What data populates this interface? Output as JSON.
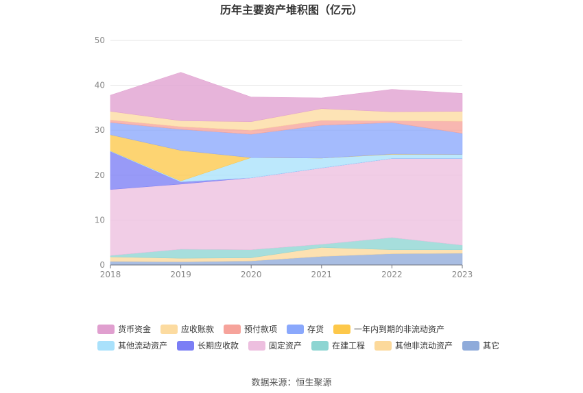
{
  "chart_data": {
    "type": "area",
    "stacked": true,
    "title": "历年主要资产堆积图（亿元）",
    "source": "数据来源：恒生聚源",
    "xlabel": "",
    "ylabel": "",
    "ylim": [
      0,
      50
    ],
    "yticks": [
      0,
      10,
      20,
      30,
      40,
      50
    ],
    "categories": [
      "2018",
      "2019",
      "2020",
      "2021",
      "2022",
      "2023"
    ],
    "grid": true,
    "legend_position": "bottom",
    "series": [
      {
        "name": "其它",
        "color": "#8fabda",
        "values": [
          0.8,
          0.7,
          0.9,
          1.9,
          2.5,
          2.6
        ]
      },
      {
        "name": "其他非流动资产",
        "color": "#fcd99b",
        "values": [
          1.0,
          0.8,
          0.7,
          2.0,
          0.9,
          0.8
        ]
      },
      {
        "name": "在建工程",
        "color": "#8dd5d2",
        "values": [
          0.3,
          2.0,
          1.8,
          0.7,
          2.7,
          1.0
        ]
      },
      {
        "name": "固定资产",
        "color": "#edbfdf",
        "values": [
          14.7,
          14.5,
          16.0,
          17.0,
          17.6,
          19.3
        ]
      },
      {
        "name": "长期应收款",
        "color": "#7b7ef5",
        "values": [
          8.5,
          0.5,
          0.0,
          0.0,
          0.0,
          0.0
        ]
      },
      {
        "name": "其他流动资产",
        "color": "#a9e1fb",
        "values": [
          0.1,
          0.2,
          4.5,
          2.2,
          0.9,
          0.9
        ]
      },
      {
        "name": "一年内到期的非流动资产",
        "color": "#fdc84a",
        "values": [
          3.6,
          6.8,
          0.0,
          0.0,
          0.1,
          0.0
        ]
      },
      {
        "name": "存货",
        "color": "#8aa8fc",
        "values": [
          2.7,
          4.7,
          5.2,
          7.3,
          7.0,
          4.7
        ]
      },
      {
        "name": "预付款项",
        "color": "#f6a39b",
        "values": [
          0.6,
          0.6,
          0.9,
          1.1,
          0.4,
          2.7
        ]
      },
      {
        "name": "应收账款",
        "color": "#fcdba0",
        "values": [
          1.9,
          1.3,
          1.9,
          2.6,
          2.0,
          2.2
        ]
      },
      {
        "name": "货币资金",
        "color": "#e09fcf",
        "values": [
          3.6,
          10.8,
          5.5,
          2.4,
          5.0,
          4.0
        ]
      }
    ],
    "legend_order": [
      "货币资金",
      "应收账款",
      "预付款项",
      "存货",
      "一年内到期的非流动资产",
      "其他流动资产",
      "长期应收款",
      "固定资产",
      "在建工程",
      "其他非流动资产",
      "其它"
    ]
  }
}
